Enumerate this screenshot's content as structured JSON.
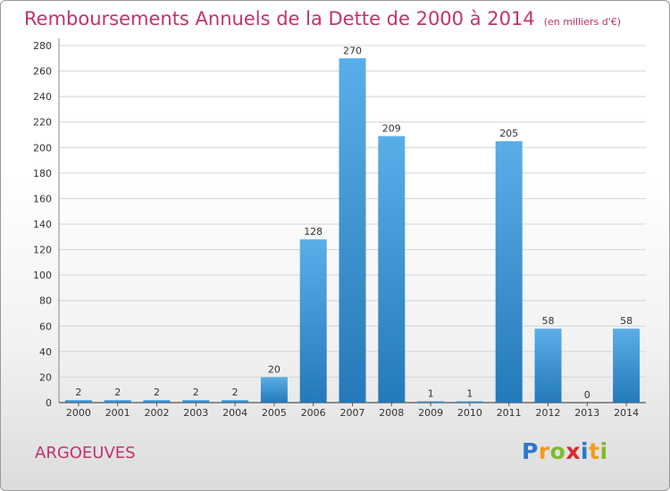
{
  "title": "Remboursements Annuels de la Dette de 2000 à 2014",
  "subtitle": "(en milliers d'€)",
  "commune": "ARGOEUVES",
  "logo": {
    "letters": [
      "P",
      "r",
      "o",
      "x",
      "i",
      "t",
      "i"
    ],
    "colors": [
      "#2b78c9",
      "#f39b1c",
      "#7dbb2a",
      "#e0262d",
      "#2b78c9",
      "#f39b1c",
      "#7dbb2a"
    ]
  },
  "chart_data": {
    "type": "bar",
    "title": "Remboursements Annuels de la Dette de 2000 à 2014",
    "xlabel": "",
    "ylabel": "",
    "categories": [
      "2000",
      "2001",
      "2002",
      "2003",
      "2004",
      "2005",
      "2006",
      "2007",
      "2008",
      "2009",
      "2010",
      "2011",
      "2012",
      "2013",
      "2014"
    ],
    "values": [
      2,
      2,
      2,
      2,
      2,
      20,
      128,
      270,
      209,
      1,
      1,
      205,
      58,
      0,
      58
    ],
    "ylim": [
      0,
      280
    ],
    "yticks": [
      0,
      20,
      40,
      60,
      80,
      100,
      120,
      140,
      160,
      180,
      200,
      220,
      240,
      260,
      280
    ],
    "grid": true,
    "legend": "none",
    "bar_color_top": "#5aaee8",
    "bar_color_bottom": "#2479b8"
  }
}
